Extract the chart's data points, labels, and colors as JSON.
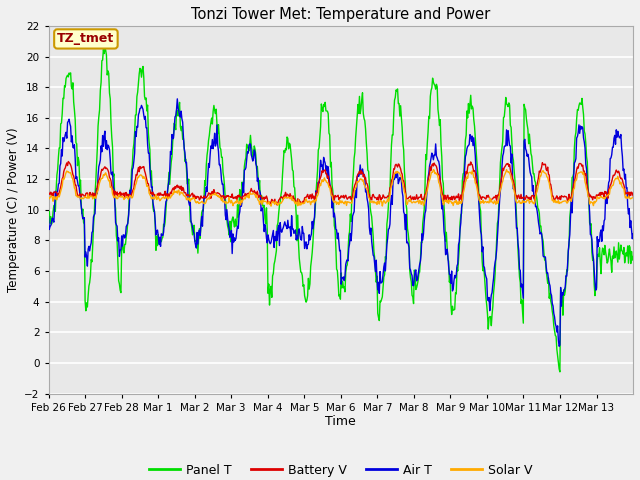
{
  "title": "Tonzi Tower Met: Temperature and Power",
  "xlabel": "Time",
  "ylabel": "Temperature (C) / Power (V)",
  "ylim": [
    -2,
    22
  ],
  "yticks": [
    -2,
    0,
    2,
    4,
    6,
    8,
    10,
    12,
    14,
    16,
    18,
    20,
    22
  ],
  "xtick_labels": [
    "Feb 26",
    "Feb 27",
    "Feb 28",
    "Mar 1",
    "Mar 2",
    "Mar 3",
    "Mar 4",
    "Mar 5",
    "Mar 6",
    "Mar 7",
    "Mar 8",
    "Mar 9",
    "Mar 10",
    "Mar 11",
    "Mar 12",
    "Mar 13"
  ],
  "bg_color": "#e8e8e8",
  "grid_color": "#ffffff",
  "line_colors": {
    "panel_t": "#00dd00",
    "battery_v": "#dd0000",
    "air_t": "#0000dd",
    "solar_v": "#ffaa00"
  },
  "annotation_text": "TZ_tmet",
  "annotation_bg": "#ffffcc",
  "annotation_border": "#cc9900",
  "fig_bg": "#f0f0f0"
}
